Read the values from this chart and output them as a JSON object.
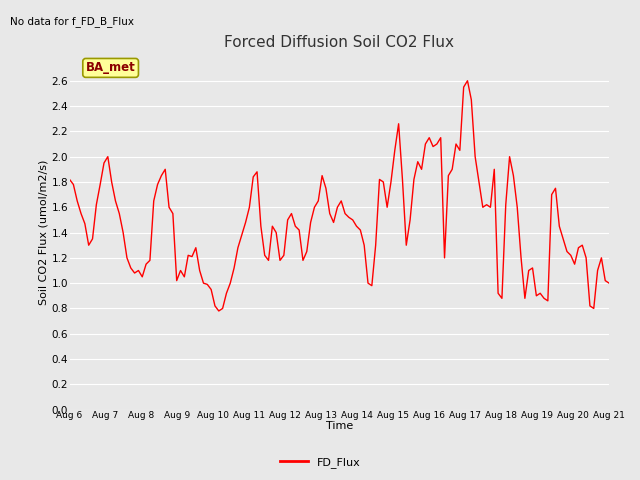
{
  "title": "Forced Diffusion Soil CO2 Flux",
  "no_data_text": "No data for f_FD_B_Flux",
  "xlabel": "Time",
  "ylabel": "Soil CO2 Flux (umol/m2/s)",
  "ylim": [
    0.0,
    2.8
  ],
  "yticks": [
    0.0,
    0.2,
    0.4,
    0.6,
    0.8,
    1.0,
    1.2,
    1.4,
    1.6,
    1.8,
    2.0,
    2.2,
    2.4,
    2.6
  ],
  "line_color": "#FF0000",
  "line_width": 1.0,
  "legend_label": "FD_Flux",
  "legend_line_color": "#FF0000",
  "bg_color": "#E8E8E8",
  "plot_bg_color": "#E8E8E8",
  "annotation_text": "BA_met",
  "annotation_bg": "#FFFF99",
  "annotation_border": "#999900",
  "x_tick_labels": [
    "Aug 6",
    "Aug 7",
    "Aug 8",
    "Aug 9",
    "Aug 10",
    "Aug 11",
    "Aug 12",
    "Aug 13",
    "Aug 14",
    "Aug 15",
    "Aug 16",
    "Aug 17",
    "Aug 18",
    "Aug 19",
    "Aug 20",
    "Aug 21"
  ],
  "fd_flux_values": [
    1.82,
    1.78,
    1.65,
    1.55,
    1.47,
    1.3,
    1.35,
    1.62,
    1.78,
    1.95,
    2.0,
    1.8,
    1.65,
    1.55,
    1.4,
    1.2,
    1.12,
    1.08,
    1.1,
    1.05,
    1.15,
    1.18,
    1.65,
    1.78,
    1.85,
    1.9,
    1.6,
    1.55,
    1.02,
    1.1,
    1.05,
    1.22,
    1.21,
    1.28,
    1.1,
    1.0,
    0.99,
    0.95,
    0.82,
    0.78,
    0.8,
    0.92,
    1.0,
    1.12,
    1.28,
    1.38,
    1.48,
    1.6,
    1.84,
    1.88,
    1.45,
    1.22,
    1.18,
    1.45,
    1.4,
    1.18,
    1.22,
    1.5,
    1.55,
    1.45,
    1.42,
    1.18,
    1.25,
    1.48,
    1.6,
    1.65,
    1.85,
    1.75,
    1.55,
    1.48,
    1.6,
    1.65,
    1.55,
    1.52,
    1.5,
    1.45,
    1.42,
    1.3,
    1.0,
    0.98,
    1.3,
    1.82,
    1.8,
    1.6,
    1.8,
    2.05,
    2.26,
    1.82,
    1.3,
    1.5,
    1.82,
    1.96,
    1.9,
    2.1,
    2.15,
    2.08,
    2.1,
    2.15,
    1.2,
    1.85,
    1.9,
    2.1,
    2.05,
    2.55,
    2.6,
    2.45,
    2.0,
    1.8,
    1.6,
    1.62,
    1.6,
    1.9,
    0.92,
    0.88,
    1.62,
    2.0,
    1.85,
    1.6,
    1.2,
    0.88,
    1.1,
    1.12,
    0.9,
    0.92,
    0.88,
    0.86,
    1.7,
    1.75,
    1.45,
    1.35,
    1.25,
    1.22,
    1.15,
    1.28,
    1.3,
    1.2,
    0.82,
    0.8,
    1.1,
    1.2,
    1.02,
    1.0
  ]
}
